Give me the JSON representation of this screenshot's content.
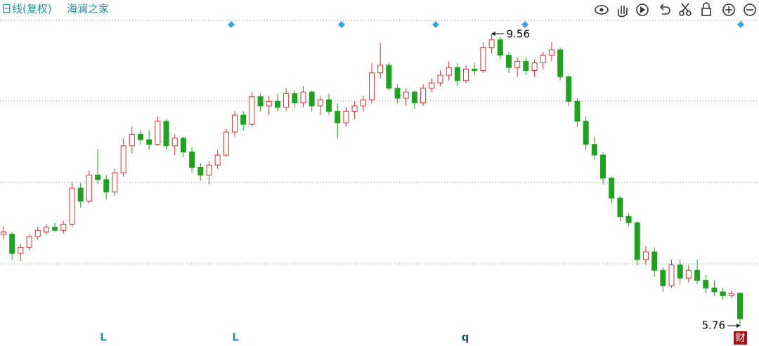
{
  "chart_data": {
    "type": "candlestick",
    "title": "日线(复权)",
    "subtitle": "海澜之家",
    "up_color": "#d8322f",
    "down_color": "#22a022",
    "open": [
      6.95,
      6.95,
      6.7,
      6.78,
      6.92,
      6.98,
      7.04,
      7.0,
      7.08,
      7.55,
      7.38,
      7.72,
      7.66,
      7.5,
      7.75,
      8.1,
      8.25,
      8.18,
      8.12,
      8.42,
      8.1,
      8.2,
      8.02,
      7.82,
      7.72,
      7.85,
      7.98,
      8.28,
      8.5,
      8.38,
      8.74,
      8.62,
      8.68,
      8.6,
      8.78,
      8.66,
      8.8,
      8.62,
      8.7,
      8.55,
      8.4,
      8.55,
      8.62,
      8.7,
      9.05,
      9.15,
      8.85,
      8.72,
      8.8,
      8.66,
      8.85,
      8.92,
      9.02,
      9.12,
      8.95,
      9.1,
      9.08,
      9.38,
      9.48,
      9.28,
      9.12,
      9.2,
      9.08,
      9.18,
      9.28,
      9.35,
      9.0,
      8.68,
      8.42,
      8.12,
      7.98,
      7.68,
      7.42,
      7.18,
      7.1,
      6.62,
      6.72,
      6.48,
      6.28,
      6.55,
      6.38,
      6.48,
      6.35,
      6.25,
      6.2,
      6.15,
      6.18
    ],
    "high": [
      7.05,
      6.98,
      6.82,
      6.95,
      7.05,
      7.08,
      7.1,
      7.12,
      7.62,
      7.62,
      7.78,
      8.06,
      7.72,
      7.8,
      8.2,
      8.35,
      8.3,
      8.3,
      8.48,
      8.45,
      8.25,
      8.22,
      8.08,
      7.88,
      7.9,
      8.05,
      8.32,
      8.55,
      8.55,
      8.8,
      8.78,
      8.75,
      8.78,
      8.85,
      8.82,
      8.88,
      8.82,
      8.75,
      8.78,
      8.65,
      8.6,
      8.68,
      8.75,
      9.18,
      9.44,
      9.18,
      8.9,
      8.85,
      8.82,
      8.9,
      8.98,
      9.08,
      9.2,
      9.18,
      9.15,
      9.18,
      9.45,
      9.56,
      9.52,
      9.32,
      9.25,
      9.25,
      9.22,
      9.32,
      9.45,
      9.38,
      9.02,
      8.72,
      8.48,
      8.22,
      8.02,
      7.7,
      7.45,
      7.22,
      7.12,
      6.8,
      6.78,
      6.52,
      6.62,
      6.62,
      6.55,
      6.62,
      6.42,
      6.35,
      6.25,
      6.22,
      6.2
    ],
    "low": [
      6.88,
      6.62,
      6.6,
      6.74,
      6.88,
      6.94,
      6.98,
      6.96,
      7.05,
      7.3,
      7.35,
      7.6,
      7.4,
      7.45,
      7.7,
      8.0,
      8.12,
      8.05,
      8.1,
      8.05,
      7.98,
      7.95,
      7.75,
      7.65,
      7.6,
      7.8,
      7.95,
      8.22,
      8.3,
      8.35,
      8.55,
      8.5,
      8.55,
      8.55,
      8.6,
      8.6,
      8.55,
      8.5,
      8.5,
      8.2,
      8.35,
      8.45,
      8.55,
      8.65,
      8.98,
      8.82,
      8.65,
      8.62,
      8.58,
      8.62,
      8.8,
      8.88,
      8.95,
      8.88,
      8.92,
      9.02,
      9.05,
      9.3,
      9.22,
      9.05,
      9.0,
      9.02,
      9.0,
      9.1,
      9.2,
      8.95,
      8.62,
      8.35,
      8.05,
      7.92,
      7.6,
      7.35,
      7.12,
      7.05,
      6.55,
      6.55,
      6.4,
      6.2,
      6.25,
      6.3,
      6.32,
      6.3,
      6.18,
      6.15,
      6.1,
      6.12,
      5.76
    ],
    "close": [
      6.98,
      6.7,
      6.78,
      6.92,
      7.0,
      7.04,
      7.0,
      7.08,
      7.55,
      7.38,
      7.72,
      7.66,
      7.5,
      7.75,
      8.1,
      8.25,
      8.18,
      8.12,
      8.42,
      8.1,
      8.2,
      8.02,
      7.82,
      7.72,
      7.85,
      7.98,
      8.28,
      8.5,
      8.38,
      8.74,
      8.62,
      8.68,
      8.6,
      8.78,
      8.66,
      8.8,
      8.62,
      8.7,
      8.55,
      8.4,
      8.55,
      8.62,
      8.7,
      9.05,
      9.15,
      8.85,
      8.72,
      8.8,
      8.66,
      8.85,
      8.92,
      9.02,
      9.12,
      8.95,
      9.1,
      9.08,
      9.38,
      9.48,
      9.28,
      9.12,
      9.2,
      9.08,
      9.18,
      9.28,
      9.35,
      9.0,
      8.68,
      8.42,
      8.12,
      7.98,
      7.68,
      7.42,
      7.18,
      7.1,
      6.62,
      6.72,
      6.48,
      6.28,
      6.55,
      6.38,
      6.48,
      6.35,
      6.25,
      6.2,
      6.15,
      6.18,
      5.85
    ],
    "event_marks": [
      "L",
      "L",
      "q"
    ],
    "badge": "财"
  }
}
